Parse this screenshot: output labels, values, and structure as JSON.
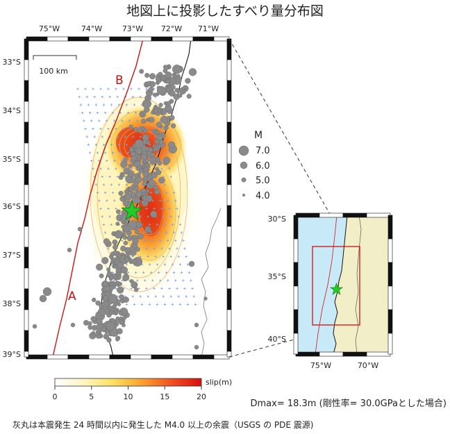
{
  "title": "地図上に投影したすべり量分布図",
  "main_map": {
    "lon_labels": [
      "75°W",
      "74°W",
      "73°W",
      "72°W",
      "71°W"
    ],
    "lat_labels": [
      "33°S",
      "34°S",
      "35°S",
      "36°S",
      "37°S",
      "38°S",
      "39°S"
    ],
    "scale_bar_label": "100 km",
    "trench_label_b": "B",
    "trench_label_a": "A"
  },
  "legend": {
    "title": "M",
    "magnitudes": [
      "7.0",
      "6.0",
      "5.0",
      "4.0"
    ]
  },
  "inset_map": {
    "lat_labels": [
      "30°S",
      "35°S",
      "40°S"
    ],
    "lon_labels": [
      "75°W",
      "70°W"
    ]
  },
  "colorbar": {
    "label": "slip(m)",
    "ticks": [
      "0",
      "5",
      "10",
      "15",
      "20"
    ]
  },
  "dmax_text": "Dmax= 18.3m (剛性率= 30.0GPaとした場合)",
  "footnote": "灰丸は本震発生 24 時間以内に発生した M4.0 以上の余震（USGS の PDE 震源)",
  "colors": {
    "trench": "#d01010",
    "epicenter": "#22cc22",
    "aftershock": "#8a8a8a",
    "ocean": "#c8eaf8",
    "land": "#f2efc8",
    "slip_high": "#e02010",
    "slip_low": "#fffbe0"
  }
}
